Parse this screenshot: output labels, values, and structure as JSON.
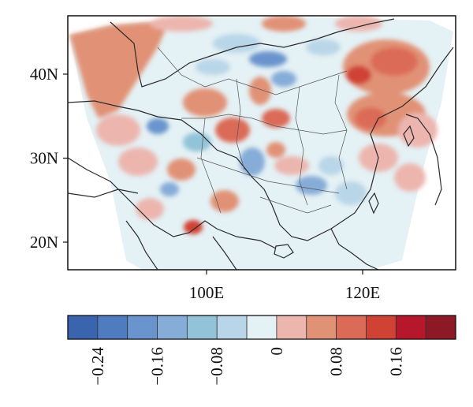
{
  "map": {
    "lat_ticks": [
      {
        "label": "40N",
        "lat": 40
      },
      {
        "label": "30N",
        "lat": 30
      },
      {
        "label": "20N",
        "lat": 20
      }
    ],
    "lon_ticks": [
      {
        "label": "100E",
        "lon": 100
      },
      {
        "label": "120E",
        "lon": 120
      }
    ],
    "colors": {
      "ocean": "#ffffff",
      "boundary": "#2a2a2a",
      "frame": "#111111"
    }
  },
  "colorbar": {
    "colors": [
      "#3a64ad",
      "#4f7cc0",
      "#6a94cd",
      "#86acd8",
      "#93c3d9",
      "#b9d6e8",
      "#e4f1f5",
      "#ecb6af",
      "#e19276",
      "#db6b57",
      "#d04334",
      "#b7172a",
      "#8d1826"
    ],
    "tick_labels": [
      "−0.24",
      "−0.16",
      "−0.08",
      "0",
      "0.08",
      "0.16"
    ],
    "tick_positions": [
      1,
      3,
      5,
      7,
      9,
      11
    ]
  }
}
